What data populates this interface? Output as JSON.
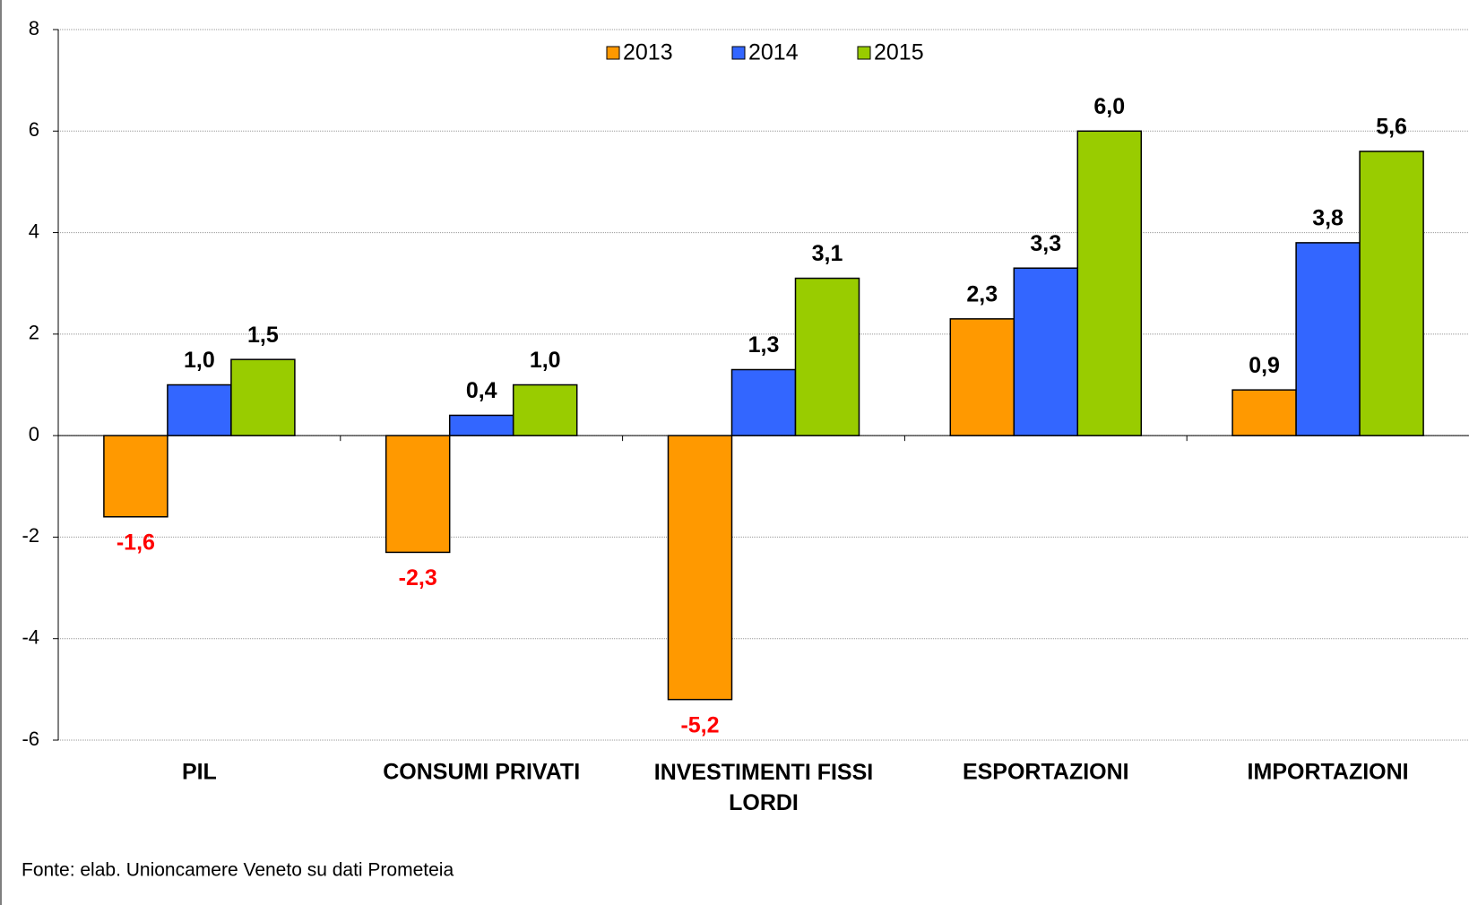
{
  "chart_data": {
    "type": "bar",
    "categories": [
      "PIL",
      "CONSUMI PRIVATI",
      "INVESTIMENTI FISSI LORDI",
      "ESPORTAZIONI",
      "IMPORTAZIONI"
    ],
    "series": [
      {
        "name": "2013",
        "color": "#ff9900",
        "values": [
          -1.6,
          -2.3,
          -5.2,
          2.3,
          0.9
        ],
        "value_labels": [
          "-1,6",
          "-2,3",
          "-5,2",
          "2,3",
          "0,9"
        ]
      },
      {
        "name": "2014",
        "color": "#3366ff",
        "values": [
          1.0,
          0.4,
          1.3,
          3.3,
          3.8
        ],
        "value_labels": [
          "1,0",
          "0,4",
          "1,3",
          "3,3",
          "3,8"
        ]
      },
      {
        "name": "2015",
        "color": "#99cc00",
        "values": [
          1.5,
          1.0,
          3.1,
          6.0,
          5.6
        ],
        "value_labels": [
          "1,5",
          "1,0",
          "3,1",
          "6,0",
          "5,6"
        ]
      }
    ],
    "ylim": [
      -6,
      8
    ],
    "yticks": [
      -6,
      -4,
      -2,
      0,
      2,
      4,
      6,
      8
    ],
    "grid": true,
    "legend": "top",
    "source": "Fonte: elab. Unioncamere Veneto su dati Prometeia"
  }
}
